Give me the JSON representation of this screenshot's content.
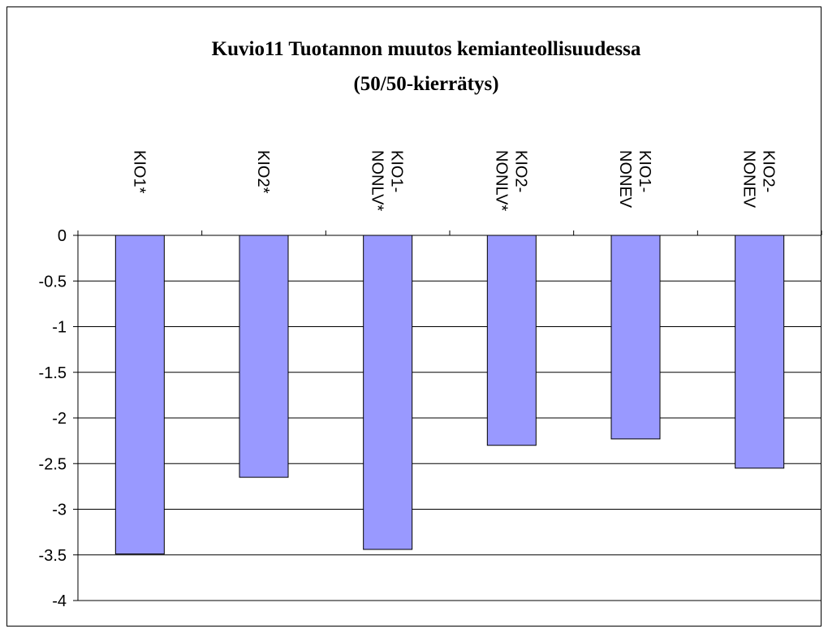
{
  "chart_data": {
    "type": "bar",
    "title": "Kuvio11 Tuotannon muutos kemianteollisuudessa",
    "subtitle": "(50/50-kierrätys)",
    "categories": [
      "KIO1*",
      "KIO2*",
      "KIO1-NONLV*",
      "KIO2-NONLV*",
      "KIO1-NONEV",
      "KIO2-NONEV"
    ],
    "values": [
      -3.49,
      -2.65,
      -3.44,
      -2.3,
      -2.23,
      -2.55
    ],
    "color": "#9999ff",
    "ylim": [
      -4,
      0
    ],
    "yticks": [
      0,
      -0.5,
      -1,
      -1.5,
      -2,
      -2.5,
      -3,
      -3.5,
      -4
    ],
    "grid": true
  }
}
